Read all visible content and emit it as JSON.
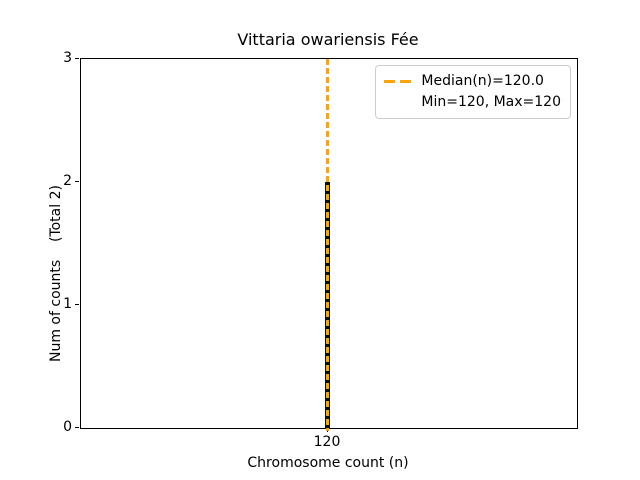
{
  "title": "Vittaria owariensis Fée",
  "x_axis": {
    "label": "Chromosome count (n)",
    "tick": "120"
  },
  "y_axis": {
    "label": "Num of counts    (Total 2)",
    "ticks": [
      "0",
      "1",
      "2",
      "3"
    ]
  },
  "legend": {
    "median_label": "Median(n)=120.0",
    "minmax_label": "Min=120, Max=120"
  },
  "colors": {
    "median_line": "#FFA500",
    "bar": "#0a0f0a",
    "legend_border": "#cccccc",
    "text": "#000000"
  },
  "chart_data": {
    "type": "bar",
    "title": "Vittaria owariensis Fée",
    "xlabel": "Chromosome count (n)",
    "ylabel": "Num of counts (Total 2)",
    "categories": [
      120
    ],
    "values": [
      2
    ],
    "total_counts": 2,
    "ylim": [
      0,
      3
    ],
    "yticks": [
      0,
      1,
      2,
      3
    ],
    "xticks": [
      120
    ],
    "bar_color": "black",
    "median_line": {
      "value": 120.0,
      "color": "#FFA500",
      "style": "dashed"
    },
    "annotations": {
      "median_n": 120.0,
      "min_n": 120,
      "max_n": 120
    },
    "legend_position": "upper right",
    "grid": false
  }
}
